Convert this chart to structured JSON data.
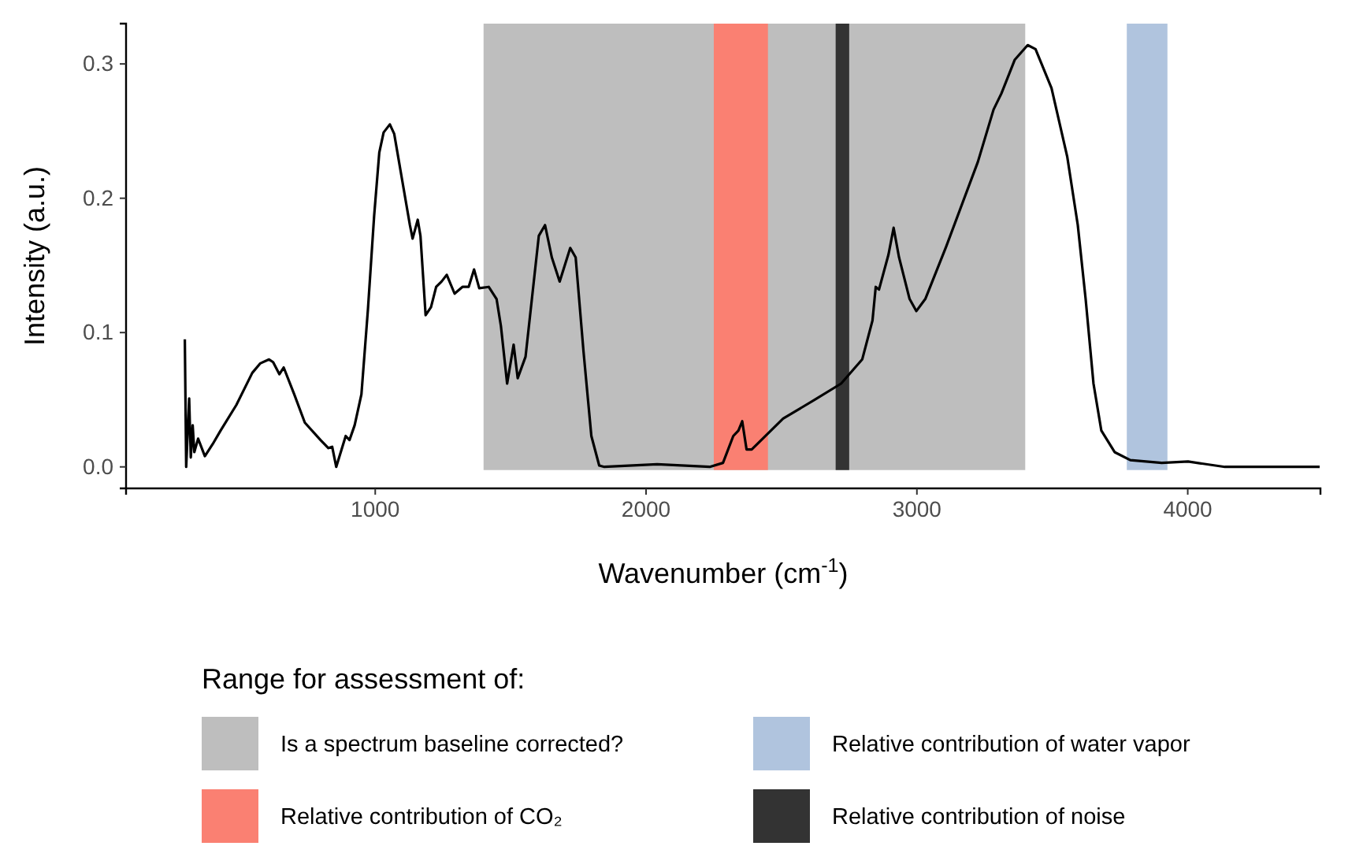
{
  "chart_data": {
    "type": "line",
    "xlabel": "Wavenumber (cm$^{-1}$)",
    "ylabel": "Intensity (a.u.)",
    "legend_title": "Range for assessment of:",
    "legend": "bottom",
    "grid": false,
    "line_style": "solid",
    "marker": "none",
    "xlim": [
      80,
      4490
    ],
    "ylim": [
      -0.016,
      0.33
    ],
    "xticks": [
      1000,
      2000,
      3000,
      4000
    ],
    "yticks": [
      {
        "value": 0,
        "label": "0.0"
      },
      {
        "value": 0.1,
        "label": "0.1"
      },
      {
        "value": 0.2,
        "label": "0.2"
      },
      {
        "value": 0.3,
        "label": "0.3"
      }
    ],
    "bands": [
      {
        "axis": "x",
        "from": 1400,
        "to": 3400,
        "label": "Is a spectrum baseline corrected?",
        "color": "#bebebe"
      },
      {
        "axis": "x",
        "from": 2250,
        "to": 2450,
        "label": "Relative contribution of CO₂",
        "color": "#fa8072"
      },
      {
        "axis": "x",
        "from": 3775,
        "to": 3925,
        "label": "Relative contribution of water vapor",
        "color": "#b0c4de"
      },
      {
        "axis": "x",
        "from": 2700,
        "to": 2750,
        "label": "Relative contribution of noise",
        "color": "#333333"
      }
    ],
    "series": [
      {
        "color": "#000000",
        "x": [
          297,
          302,
          313,
          319,
          326,
          332,
          346,
          371,
          400,
          429,
          487,
          546,
          575,
          608,
          623,
          646,
          662,
          701,
          740,
          798,
          827,
          841,
          856,
          891,
          905,
          924,
          949,
          973,
          996,
          1015,
          1031,
          1054,
          1070,
          1105,
          1128,
          1138,
          1157,
          1167,
          1186,
          1206,
          1225,
          1245,
          1264,
          1293,
          1322,
          1345,
          1365,
          1384,
          1419,
          1448,
          1464,
          1487,
          1511,
          1526,
          1555,
          1604,
          1627,
          1652,
          1681,
          1720,
          1740,
          1769,
          1798,
          1827,
          1846,
          2041,
          2235,
          2284,
          2322,
          2341,
          2355,
          2371,
          2390,
          2506,
          2623,
          2720,
          2798,
          2836,
          2848,
          2860,
          2895,
          2914,
          2934,
          2973,
          2998,
          3031,
          3108,
          3225,
          3283,
          3312,
          3361,
          3409,
          3438,
          3497,
          3555,
          3594,
          3623,
          3652,
          3681,
          3730,
          3788,
          3904,
          4001,
          4137,
          4331,
          4487
        ],
        "values": [
          0.095,
          0.0,
          0.051,
          0.007,
          0.031,
          0.011,
          0.021,
          0.008,
          0.017,
          0.027,
          0.046,
          0.07,
          0.077,
          0.08,
          0.078,
          0.069,
          0.074,
          0.054,
          0.033,
          0.02,
          0.014,
          0.015,
          0.0,
          0.023,
          0.02,
          0.031,
          0.054,
          0.117,
          0.187,
          0.234,
          0.249,
          0.255,
          0.248,
          0.207,
          0.18,
          0.17,
          0.184,
          0.172,
          0.113,
          0.119,
          0.134,
          0.138,
          0.143,
          0.129,
          0.134,
          0.134,
          0.147,
          0.133,
          0.134,
          0.125,
          0.105,
          0.062,
          0.091,
          0.066,
          0.082,
          0.172,
          0.18,
          0.156,
          0.138,
          0.163,
          0.156,
          0.086,
          0.023,
          0.001,
          0.0,
          0.002,
          0.0,
          0.003,
          0.023,
          0.027,
          0.034,
          0.013,
          0.013,
          0.036,
          0.05,
          0.062,
          0.08,
          0.109,
          0.134,
          0.132,
          0.158,
          0.178,
          0.156,
          0.125,
          0.116,
          0.125,
          0.164,
          0.227,
          0.266,
          0.278,
          0.303,
          0.314,
          0.311,
          0.282,
          0.231,
          0.18,
          0.125,
          0.062,
          0.027,
          0.011,
          0.005,
          0.003,
          0.004,
          0.0,
          0.0,
          0.0
        ]
      }
    ]
  }
}
